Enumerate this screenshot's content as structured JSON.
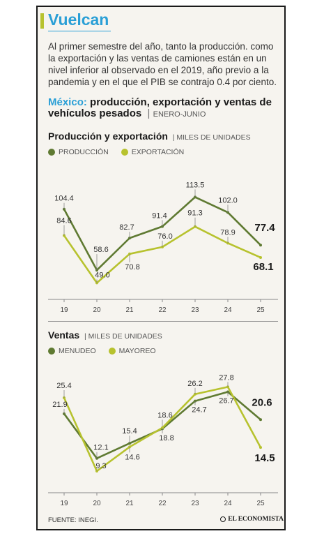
{
  "header": {
    "title": "Vuelcan",
    "intro": "Al primer semestre del año, tanto la producción. como la exportación y las ventas de camiones están en un nivel inferior al observado en el 2019, año previo a la pandemia y en el que el PIB se contrajo 0.4 por ciento.",
    "subtitle_country": "México:",
    "subtitle_rest": " producción, exportación y ventas de vehículos pesados",
    "subtitle_range": "ENERO-JUNIO"
  },
  "colors": {
    "dark": "#5f7a32",
    "light": "#b7c22e",
    "accent": "#2a9fd6"
  },
  "chart_data": [
    {
      "type": "line",
      "title": "Producción y exportación",
      "unit": "MILES DE UNIDADES",
      "categories": [
        "19",
        "20",
        "21",
        "22",
        "23",
        "24",
        "25"
      ],
      "series": [
        {
          "name": "PRODUCCIÓN",
          "values": [
            104.4,
            58.6,
            82.7,
            91.4,
            113.5,
            102.0,
            77.4
          ],
          "labels": [
            "104.4",
            "58.6",
            "82.7",
            "91.4",
            "113.5",
            "102.0",
            "77.4"
          ]
        },
        {
          "name": "EXPORTACIÓN",
          "values": [
            84.6,
            49.0,
            70.8,
            76.0,
            91.3,
            78.9,
            68.1
          ],
          "labels": [
            "84.6",
            "49.0",
            "70.8",
            "76.0",
            "91.3",
            "78.9",
            "68.1"
          ]
        }
      ],
      "ylim": [
        45,
        120
      ]
    },
    {
      "type": "line",
      "title": "Ventas",
      "unit": "MILES DE UNIDADES",
      "categories": [
        "19",
        "20",
        "21",
        "22",
        "23",
        "24",
        "25"
      ],
      "series": [
        {
          "name": "MENUDEO",
          "values": [
            21.9,
            12.1,
            15.4,
            18.6,
            24.7,
            26.7,
            20.6
          ],
          "labels": [
            "21.9",
            "12.1",
            "15.4",
            "18.6",
            "24.7",
            "26.7",
            "20.6"
          ]
        },
        {
          "name": "MAYOREO",
          "values": [
            25.4,
            9.3,
            14.6,
            18.8,
            26.2,
            27.8,
            14.5
          ],
          "labels": [
            "25.4",
            "9.3",
            "14.6",
            "18.8",
            "26.2",
            "27.8",
            "14.5"
          ]
        }
      ],
      "ylim": [
        7,
        30
      ]
    }
  ],
  "footer": {
    "source": "FUENTE: INEGI.",
    "brand": "EL ECONOMISTA"
  }
}
